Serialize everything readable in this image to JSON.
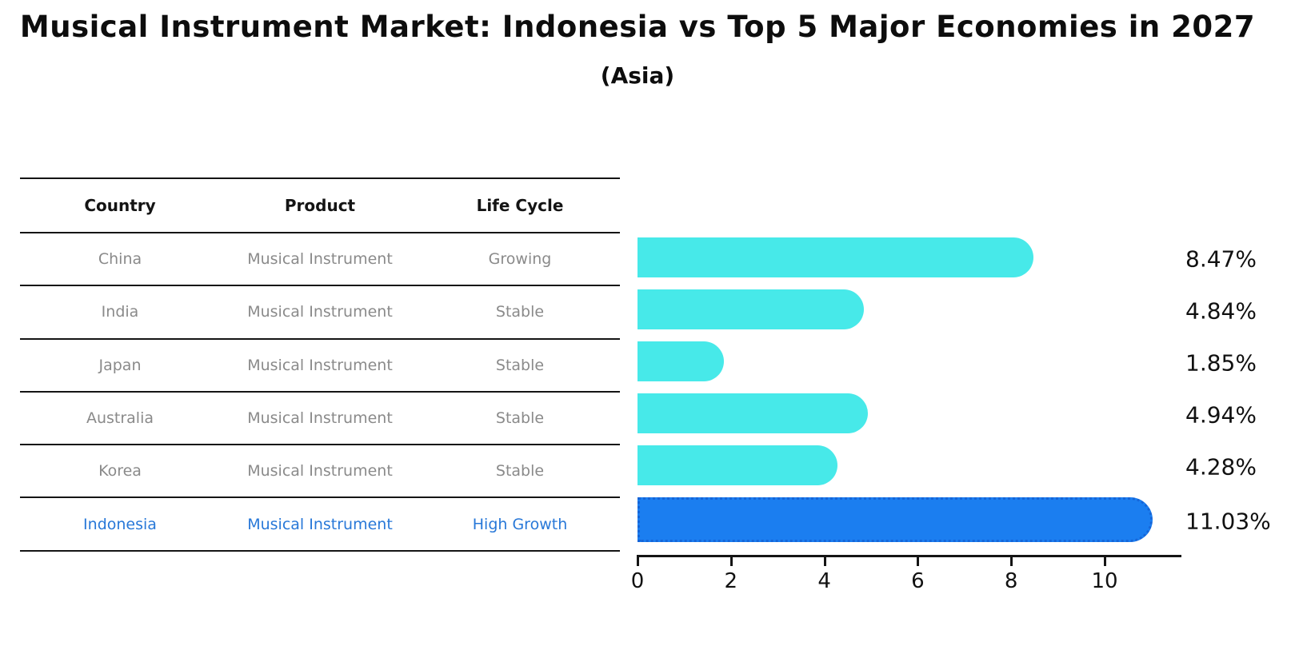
{
  "title": "Musical Instrument Market: Indonesia vs Top 5 Major Economies in 2027",
  "subtitle": "(Asia)",
  "table": {
    "headers": [
      "Country",
      "Product",
      "Life Cycle"
    ],
    "rows": [
      {
        "country": "China",
        "product": "Musical Instrument",
        "life_cycle": "Growing",
        "highlighted": false
      },
      {
        "country": "India",
        "product": "Musical Instrument",
        "life_cycle": "Stable",
        "highlighted": false
      },
      {
        "country": "Japan",
        "product": "Musical Instrument",
        "life_cycle": "Stable",
        "highlighted": false
      },
      {
        "country": "Australia",
        "product": "Musical Instrument",
        "life_cycle": "Stable",
        "highlighted": false
      },
      {
        "country": "Korea",
        "product": "Musical Instrument",
        "life_cycle": "Stable",
        "highlighted": false
      },
      {
        "country": "Indonesia",
        "product": "Musical Instrument",
        "life_cycle": "High Growth",
        "highlighted": true
      }
    ]
  },
  "chart_data": {
    "type": "bar",
    "orientation": "horizontal",
    "title": "Musical Instrument Market: Indonesia vs Top 5 Major Economies in 2027",
    "subtitle": "(Asia)",
    "categories": [
      "China",
      "India",
      "Japan",
      "Australia",
      "Korea",
      "Indonesia"
    ],
    "values": [
      8.47,
      4.84,
      1.85,
      4.94,
      4.28,
      11.03
    ],
    "value_labels": [
      "8.47%",
      "4.84%",
      "1.85%",
      "4.94%",
      "4.28%",
      "11.03%"
    ],
    "x_ticks": [
      0,
      2,
      4,
      6,
      8,
      10
    ],
    "xlim": [
      0,
      11.64
    ],
    "xlabel": "",
    "ylabel": "",
    "grid": false,
    "legend": "none",
    "highlight_index": 5
  },
  "colors": {
    "bar": "#47e9e9",
    "highlight_bar": "#1b7ef0",
    "highlight_border": "#1565d8",
    "highlight_text": "#2878d8",
    "row_text": "#8a8a8a",
    "header_text": "#141414",
    "axis": "#141414",
    "label_text": "#111111"
  }
}
